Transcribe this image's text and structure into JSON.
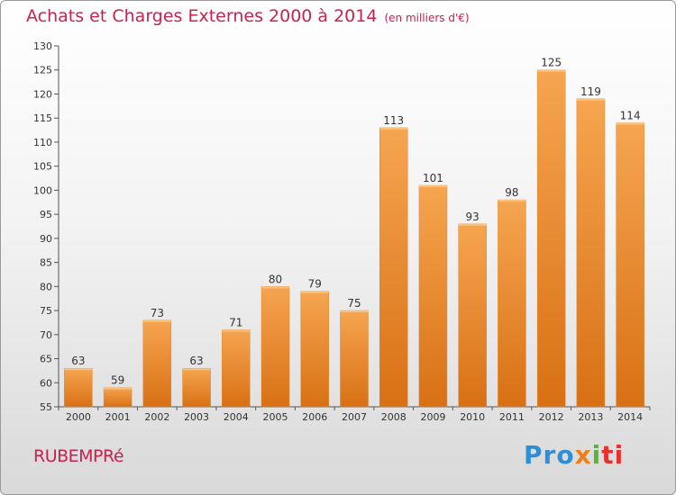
{
  "header": {
    "title": "Achats et Charges Externes 2000 à 2014",
    "unit": "(en milliers d'€)"
  },
  "footer": {
    "commune": "RUBEMPRé",
    "logo": {
      "parts": [
        "Pro",
        "x",
        "i",
        "ti"
      ]
    }
  },
  "colors": {
    "bar_light": "#f6a550",
    "bar_dark": "#d87014",
    "title": "#c8224f",
    "axis": "#555555"
  },
  "chart_data": {
    "type": "bar",
    "categories": [
      "2000",
      "2001",
      "2002",
      "2003",
      "2004",
      "2005",
      "2006",
      "2007",
      "2008",
      "2009",
      "2010",
      "2011",
      "2012",
      "2013",
      "2014"
    ],
    "values": [
      63,
      59,
      73,
      63,
      71,
      80,
      79,
      75,
      113,
      101,
      93,
      98,
      125,
      119,
      114
    ],
    "ylim": [
      55,
      130
    ],
    "yticks": [
      55,
      60,
      65,
      70,
      75,
      80,
      85,
      90,
      95,
      100,
      105,
      110,
      115,
      120,
      125,
      130
    ],
    "grid": false,
    "data_labels": true
  }
}
